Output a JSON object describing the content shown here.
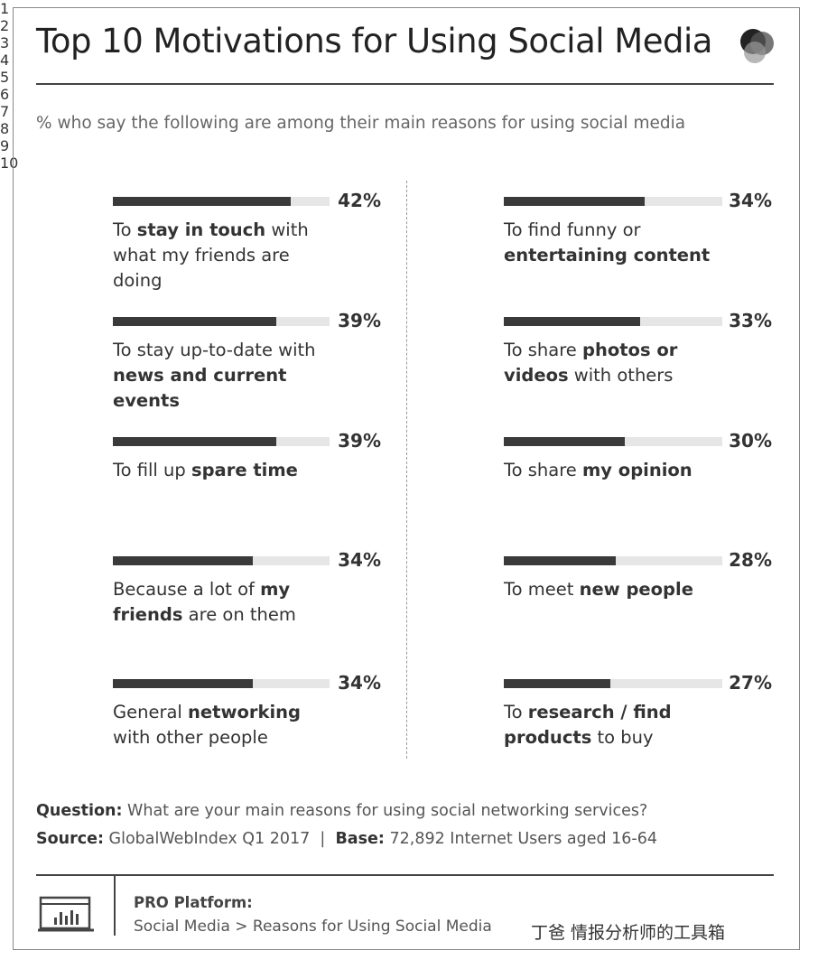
{
  "chart_data": {
    "type": "bar",
    "title": "Top 10 Motivations for Using Social Media",
    "subtitle": "% who say the following are among their main reasons for using social media",
    "ranks": [
      "1",
      "2",
      "3",
      "4",
      "5",
      "6",
      "7",
      "8",
      "9",
      "10"
    ],
    "categories": [
      [
        "To ",
        "stay in touch",
        " with what my friends are doing"
      ],
      [
        "To stay up-to-date with ",
        "news and current events"
      ],
      [
        "To fill up ",
        "spare time"
      ],
      [
        "Because a lot of ",
        "my friends",
        " are on them"
      ],
      [
        "General ",
        "networking",
        " with other people"
      ],
      [
        "To find funny or ",
        "entertaining content"
      ],
      [
        "To share ",
        "photos or videos",
        " with others"
      ],
      [
        "To share ",
        "my opinion"
      ],
      [
        "To meet ",
        "new people"
      ],
      [
        "To ",
        "research / find products",
        " to buy"
      ]
    ],
    "values": [
      42,
      39,
      39,
      34,
      34,
      34,
      33,
      30,
      28,
      27
    ],
    "value_labels": [
      "42%",
      "39%",
      "39%",
      "34%",
      "34%",
      "34%",
      "33%",
      "30%",
      "28%",
      "27%"
    ],
    "xlim": [
      5,
      50
    ],
    "color": "#3a3a3a",
    "track_color": "#e6e6e6",
    "question": {
      "label": "Question:",
      "text": "What are your main reasons for using social networking services?"
    },
    "source": {
      "label": "Source:",
      "text": "GlobalWebIndex Q1 2017",
      "separator": "|",
      "base_label": "Base:",
      "base_text": "72,892 Internet Users aged 16-64"
    },
    "platform": {
      "label": "PRO Platform:",
      "path": "Social Media > Reasons for Using Social Media"
    },
    "watermark": "丁爸 情报分析师的工具箱"
  }
}
